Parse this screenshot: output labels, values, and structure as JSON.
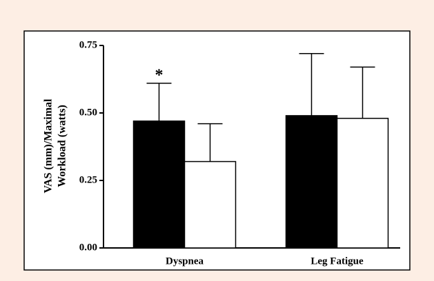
{
  "chart_data": {
    "type": "bar",
    "ylabel": [
      "VAS (mm)/Maximal",
      "Workload (watts)"
    ],
    "categories": [
      "Dyspnea",
      "Leg Fatigue"
    ],
    "series": [
      {
        "color": "#000000",
        "values": [
          0.47,
          0.49
        ],
        "errors": [
          0.14,
          0.23
        ]
      },
      {
        "color": "#ffffff",
        "values": [
          0.32,
          0.48
        ],
        "errors": [
          0.14,
          0.19
        ]
      }
    ],
    "annotations": [
      {
        "text": "*"
      }
    ],
    "ylim": [
      0,
      0.75
    ],
    "yticks": [
      {
        "value": 0,
        "label": "0.00"
      },
      {
        "value": 0.25,
        "label": "0.25"
      },
      {
        "value": 0.5,
        "label": "0.50"
      },
      {
        "value": 0.75,
        "label": "0.75"
      }
    ]
  }
}
